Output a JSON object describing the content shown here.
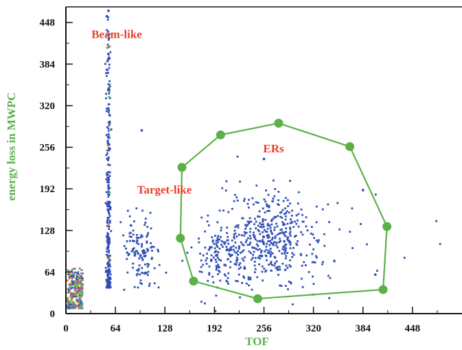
{
  "chart_data": {
    "type": "scatter",
    "xlabel": "TOF",
    "ylabel": "energy loss in MWPC",
    "xlim": [
      0,
      512
    ],
    "ylim": [
      0,
      472
    ],
    "xticks": [
      0,
      64,
      128,
      192,
      256,
      320,
      384,
      448
    ],
    "yticks": [
      0,
      64,
      128,
      192,
      256,
      320,
      384,
      448
    ],
    "grid": false,
    "colors": {
      "points": "#2f4fb5",
      "polygon": "#5bb04a",
      "axis_title": "#5bb04a",
      "annotation": "#e8402a",
      "axes": "#111111"
    },
    "annotations": [
      {
        "text": "Beam-like",
        "x": 33,
        "y": 424
      },
      {
        "text": "Target-like",
        "x": 92,
        "y": 185
      },
      {
        "text": "ERs",
        "x": 255,
        "y": 248
      }
    ],
    "er_gate_polygon": [
      {
        "x": 150,
        "y": 225
      },
      {
        "x": 200,
        "y": 275
      },
      {
        "x": 275,
        "y": 293
      },
      {
        "x": 367,
        "y": 257
      },
      {
        "x": 415,
        "y": 134
      },
      {
        "x": 410,
        "y": 37
      },
      {
        "x": 248,
        "y": 23
      },
      {
        "x": 165,
        "y": 50
      },
      {
        "x": 148,
        "y": 116
      }
    ],
    "clusters": [
      {
        "name": "near-origin",
        "x_range": [
          2,
          22
        ],
        "y_range": [
          8,
          70
        ],
        "count": 260,
        "colors": [
          "#2f4fb5",
          "#e08a2c",
          "#55b04a",
          "#3fa0c8",
          "#c24a80"
        ]
      },
      {
        "name": "beam-like",
        "x_center": 55,
        "x_spread": 1.4,
        "y_range": [
          40,
          460
        ],
        "count": 320
      },
      {
        "name": "target-like",
        "x_center": 96,
        "y_center": 92,
        "x_spread": 12,
        "y_spread": 26,
        "count": 130
      },
      {
        "name": "ers-left",
        "x_center": 200,
        "y_center": 90,
        "x_spread": 18,
        "y_spread": 22,
        "count": 140
      },
      {
        "name": "ers-main",
        "x_center": 262,
        "y_center": 115,
        "x_spread": 26,
        "y_spread": 36,
        "count": 360
      },
      {
        "name": "ers-halo",
        "x_center": 300,
        "y_center": 110,
        "x_spread": 55,
        "y_spread": 45,
        "count": 90
      }
    ],
    "highlighted_points": [
      {
        "x": 55,
        "y": 466
      },
      {
        "x": 55,
        "y": 392
      },
      {
        "x": 55,
        "y": 345
      },
      {
        "x": 98,
        "y": 282
      },
      {
        "x": 256,
        "y": 238
      },
      {
        "x": 384,
        "y": 190
      },
      {
        "x": 400,
        "y": 60
      }
    ]
  }
}
